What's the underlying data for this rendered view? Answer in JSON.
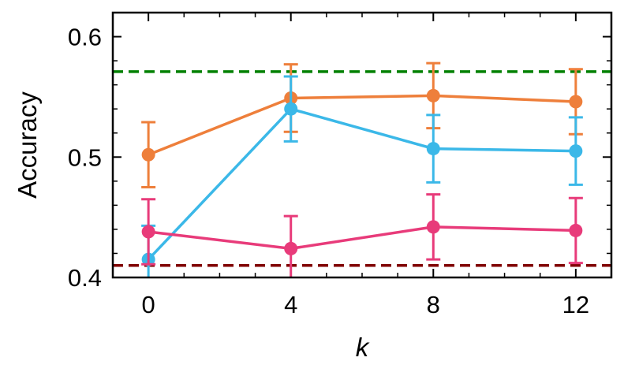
{
  "chart_data": {
    "type": "line",
    "xlabel": "k",
    "ylabel": "Accuracy",
    "xlim": [
      -1,
      13
    ],
    "ylim": [
      0.4,
      0.62
    ],
    "x_ticks": [
      0,
      4,
      8,
      12
    ],
    "y_ticks": [
      0.4,
      0.5,
      0.6
    ],
    "x_tick_labels": [
      "0",
      "4",
      "8",
      "12"
    ],
    "y_tick_labels": [
      "0.4",
      "0.5",
      "0.6"
    ],
    "grid": false,
    "x": [
      0,
      4,
      8,
      12
    ],
    "series": [
      {
        "color": "#ee7f3b",
        "values": [
          0.502,
          0.549,
          0.551,
          0.546
        ],
        "errors": [
          0.027,
          0.028,
          0.027,
          0.027
        ]
      },
      {
        "color": "#3bb8e8",
        "values": [
          0.415,
          0.54,
          0.507,
          0.505
        ],
        "errors": [
          0.028,
          0.027,
          0.028,
          0.028
        ]
      },
      {
        "color": "#e83b7a",
        "values": [
          0.438,
          0.424,
          0.442,
          0.439
        ],
        "errors": [
          0.027,
          0.027,
          0.027,
          0.027
        ]
      }
    ],
    "reference_lines": [
      {
        "y": 0.571,
        "color": "#008000",
        "style": "dashed"
      },
      {
        "y": 0.41,
        "color": "#800000",
        "style": "dashed"
      }
    ]
  }
}
